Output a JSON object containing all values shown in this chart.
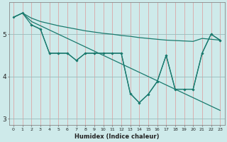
{
  "xlabel": "Humidex (Indice chaleur)",
  "bg_color": "#ceeaea",
  "line_color": "#1a7a6e",
  "grid_color_v": "#dd9999",
  "xlim": [
    -0.5,
    23.5
  ],
  "ylim": [
    2.85,
    5.75
  ],
  "yticks": [
    3,
    4,
    5
  ],
  "xticks": [
    0,
    1,
    2,
    3,
    4,
    5,
    6,
    7,
    8,
    9,
    10,
    11,
    12,
    13,
    14,
    15,
    16,
    17,
    18,
    19,
    20,
    21,
    22,
    23
  ],
  "line1_x": [
    0,
    1,
    2,
    3,
    4,
    5,
    6,
    7,
    8,
    9,
    10,
    11,
    12,
    13,
    14,
    15,
    16,
    17,
    18,
    19,
    20,
    21,
    22,
    23
  ],
  "line1_y": [
    5.4,
    5.5,
    5.38,
    5.3,
    5.25,
    5.2,
    5.16,
    5.12,
    5.08,
    5.05,
    5.02,
    5.0,
    4.97,
    4.95,
    4.92,
    4.9,
    4.88,
    4.86,
    4.85,
    4.84,
    4.83,
    4.9,
    4.88,
    4.86
  ],
  "line2_x": [
    0,
    1,
    2,
    3,
    4,
    5,
    6,
    7,
    8,
    9,
    10,
    11,
    12,
    13,
    14,
    15,
    16,
    17,
    18,
    19,
    20,
    21,
    22,
    23
  ],
  "line2_y": [
    5.4,
    5.5,
    5.3,
    5.2,
    5.1,
    5.0,
    4.9,
    4.8,
    4.7,
    4.6,
    4.5,
    4.4,
    4.3,
    4.2,
    4.1,
    4.0,
    3.9,
    3.8,
    3.7,
    3.6,
    3.5,
    3.4,
    3.3,
    3.2
  ],
  "line3_x": [
    0,
    1,
    2,
    3,
    4,
    5,
    6,
    7,
    8,
    9,
    10,
    11,
    12,
    13,
    14,
    15,
    16,
    17,
    18,
    19,
    20,
    21,
    22,
    23
  ],
  "line3_y": [
    5.4,
    5.5,
    5.22,
    5.12,
    4.55,
    4.55,
    4.55,
    4.38,
    4.55,
    4.55,
    4.55,
    4.55,
    4.55,
    3.6,
    3.38,
    3.58,
    3.88,
    4.5,
    3.7,
    3.7,
    3.7,
    4.55,
    5.0,
    4.86
  ],
  "line4_x": [
    2,
    3,
    4,
    5,
    6,
    7,
    8,
    9,
    10,
    11,
    12,
    13,
    14,
    15,
    16,
    17,
    18,
    19,
    20,
    21,
    22,
    23
  ],
  "line4_y": [
    5.22,
    5.12,
    4.55,
    4.55,
    4.55,
    4.38,
    4.55,
    4.55,
    4.55,
    4.55,
    4.55,
    3.6,
    3.38,
    3.58,
    3.88,
    4.5,
    3.7,
    3.7,
    3.7,
    4.55,
    5.0,
    4.86
  ]
}
